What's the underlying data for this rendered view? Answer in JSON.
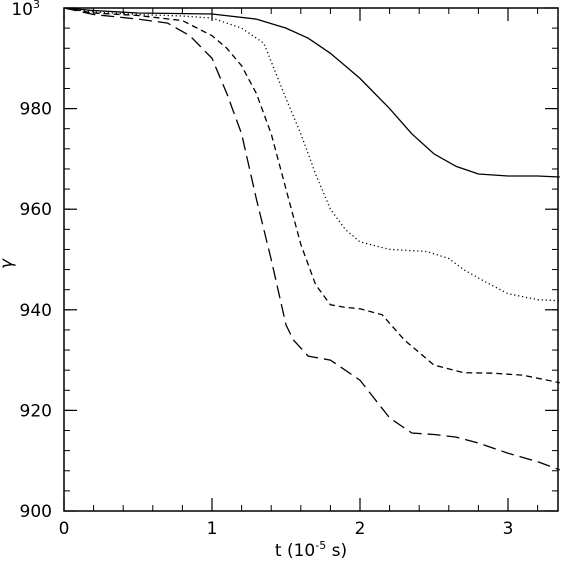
{
  "chart_data": {
    "type": "line",
    "title": "",
    "xlabel_main": "t (10",
    "xlabel_exp": "-5",
    "xlabel_tail": " s)",
    "ylabel": "γ",
    "xlim": [
      0,
      3.37
    ],
    "ylim": [
      900,
      1000
    ],
    "x_ticks": [
      {
        "value": 0,
        "label": "0"
      },
      {
        "value": 1,
        "label": "1"
      },
      {
        "value": 2,
        "label": "2"
      },
      {
        "value": 3,
        "label": "3"
      }
    ],
    "y_ticks": [
      {
        "value": 900,
        "label": "900"
      },
      {
        "value": 920,
        "label": "920"
      },
      {
        "value": 940,
        "label": "940"
      },
      {
        "value": 960,
        "label": "960"
      },
      {
        "value": 980,
        "label": "980"
      }
    ],
    "y_top_label": {
      "value": 1000,
      "base": "10",
      "exp": "3"
    },
    "x_minor_step": 0.2,
    "y_minor_step": 4,
    "grid": false,
    "legend": "none",
    "series": [
      {
        "style": "solid",
        "x": [
          0,
          0.2,
          0.5,
          1.0,
          1.3,
          1.5,
          1.65,
          1.8,
          2.0,
          2.2,
          2.35,
          2.5,
          2.65,
          2.8,
          3.0,
          3.2,
          3.35
        ],
        "y": [
          1000,
          999.5,
          999,
          998.8,
          997.8,
          996,
          994,
          991,
          986,
          980,
          975,
          971,
          968.5,
          967,
          966.6,
          966.6,
          966.4
        ]
      },
      {
        "style": "dotted",
        "x": [
          0,
          0.2,
          0.5,
          0.8,
          1.0,
          1.2,
          1.35,
          1.5,
          1.6,
          1.7,
          1.8,
          1.9,
          2.0,
          2.2,
          2.45,
          2.6,
          2.7,
          2.85,
          3.0,
          3.2,
          3.35
        ],
        "y": [
          1000,
          999.2,
          998.7,
          998.4,
          998,
          996,
          993,
          982,
          975,
          967,
          960,
          956,
          953.5,
          952,
          951.6,
          950.2,
          948,
          945.5,
          943.2,
          942,
          941.8
        ]
      },
      {
        "style": "dashed",
        "x": [
          0,
          0.2,
          0.5,
          0.8,
          1.0,
          1.1,
          1.2,
          1.3,
          1.4,
          1.5,
          1.6,
          1.7,
          1.8,
          1.9,
          2.0,
          2.15,
          2.3,
          2.5,
          2.7,
          2.9,
          3.1,
          3.35
        ],
        "y": [
          1000,
          999,
          998.5,
          997.5,
          994.5,
          992,
          988.5,
          983,
          975,
          964,
          953,
          945,
          941,
          940.5,
          940.2,
          939,
          934,
          929,
          927.5,
          927.4,
          927,
          925.5
        ]
      },
      {
        "style": "long-dashed",
        "x": [
          0,
          0.2,
          0.5,
          0.7,
          0.85,
          1.0,
          1.1,
          1.2,
          1.3,
          1.4,
          1.5,
          1.55,
          1.65,
          1.8,
          2.0,
          2.2,
          2.35,
          2.5,
          2.65,
          2.8,
          3.0,
          3.2,
          3.35
        ],
        "y": [
          1000,
          998.7,
          997.8,
          997,
          994.5,
          990,
          983,
          975,
          962,
          950,
          937,
          934,
          930.8,
          930,
          926,
          918.5,
          915.5,
          915.2,
          914.7,
          913.5,
          911.5,
          909.8,
          908.2
        ]
      }
    ]
  }
}
